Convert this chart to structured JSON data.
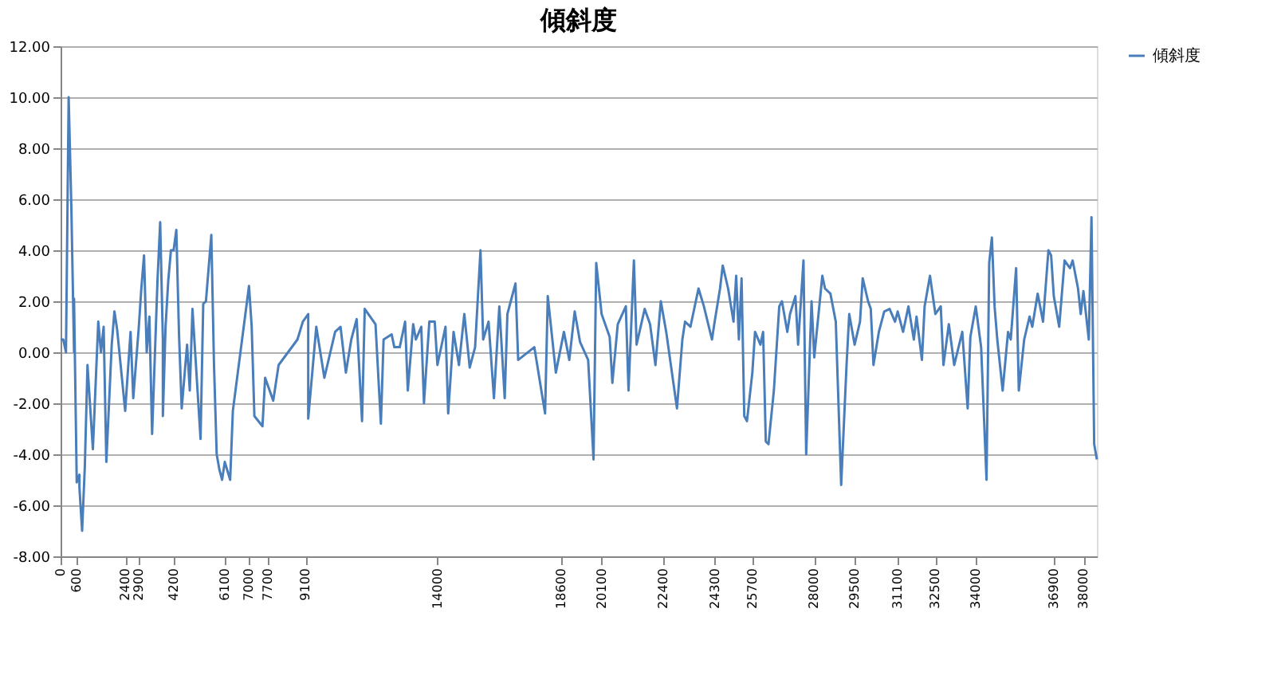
{
  "chart_data": {
    "type": "line",
    "title": "傾斜度",
    "xlim": [
      0,
      38500
    ],
    "xticks": [
      0,
      600,
      2400,
      2900,
      4200,
      6100,
      7000,
      7700,
      9100,
      14000,
      18600,
      20100,
      22400,
      24300,
      25700,
      28000,
      29500,
      31100,
      32500,
      34000,
      36900,
      38000
    ],
    "ylim": [
      -8,
      12
    ],
    "yticks": [
      {
        "value": -8,
        "label": "-8.00"
      },
      {
        "value": -6,
        "label": "-6.00"
      },
      {
        "value": -4,
        "label": "-4.00"
      },
      {
        "value": -2,
        "label": "-2.00"
      },
      {
        "value": 0,
        "label": "0.00"
      },
      {
        "value": 2,
        "label": "2.00"
      },
      {
        "value": 4,
        "label": "4.00"
      },
      {
        "value": 6,
        "label": "6.00"
      },
      {
        "value": 8,
        "label": "8.00"
      },
      {
        "value": 10,
        "label": "10.00"
      },
      {
        "value": 12,
        "label": "12.00"
      }
    ],
    "grid": "y",
    "legend": "right",
    "marker": "none",
    "line_style": "solid",
    "x": [
      0,
      100,
      200,
      300,
      400,
      400,
      500,
      500,
      600,
      700,
      700,
      800,
      900,
      1000,
      1200,
      1400,
      1500,
      1600,
      1700,
      1900,
      2000,
      2100,
      2400,
      2600,
      2700,
      2900,
      3000,
      3100,
      3200,
      3300,
      3400,
      3600,
      3700,
      3800,
      3800,
      3900,
      4000,
      4100,
      4200,
      4300,
      4400,
      4500,
      4700,
      4800,
      4900,
      5200,
      5300,
      5400,
      5600,
      5700,
      5800,
      5900,
      6000,
      6100,
      6300,
      6400,
      7000,
      7100,
      7200,
      7500,
      7600,
      7900,
      8100,
      8800,
      9000,
      9200,
      9200,
      9500,
      9800,
      10200,
      10400,
      10600,
      10800,
      11000,
      11200,
      11300,
      11700,
      11900,
      12000,
      12300,
      12400,
      12600,
      12800,
      12900,
      13100,
      13200,
      13400,
      13500,
      13700,
      13900,
      14000,
      14300,
      14400,
      14600,
      14800,
      15000,
      15200,
      15400,
      15600,
      15700,
      15900,
      16100,
      16300,
      16500,
      16600,
      16900,
      17000,
      17600,
      18000,
      18100,
      18400,
      18700,
      18900,
      19100,
      19300,
      19600,
      19800,
      19900,
      20100,
      20400,
      20500,
      20700,
      21000,
      21100,
      21300,
      21400,
      21700,
      21900,
      22100,
      22300,
      22500,
      22900,
      23100,
      23200,
      23400,
      23700,
      23900,
      24200,
      24300,
      24500,
      24600,
      24800,
      25000,
      25100,
      25200,
      25300,
      25400,
      25500,
      25700,
      25800,
      26000,
      26100,
      26200,
      26300,
      26500,
      26700,
      26800,
      27000,
      27100,
      27300,
      27400,
      27600,
      27700,
      27900,
      28000,
      28300,
      28400,
      28600,
      28800,
      29000,
      29200,
      29300,
      29500,
      29700,
      29800,
      30000,
      30100,
      30200,
      30400,
      30600,
      30800,
      31000,
      31100,
      31300,
      31500,
      31700,
      31800,
      32000,
      32100,
      32300,
      32500,
      32700,
      32800,
      33000,
      33200,
      33500,
      33700,
      33800,
      34000,
      34200,
      34400,
      34500,
      34600,
      34700,
      34800,
      35000,
      35200,
      35300,
      35500,
      35600,
      35800,
      36000,
      36100,
      36300,
      36500,
      36700,
      36800,
      36900,
      37100,
      37300,
      37500,
      37600,
      37800,
      37900,
      38000,
      38200,
      38300,
      38400,
      38500
    ],
    "series": [
      {
        "name": "傾斜度",
        "color": "#4a7ebb",
        "values": [
          0.5,
          0.5,
          0,
          10,
          5.7,
          5.7,
          0,
          2.1,
          -5.1,
          -4.8,
          -5.3,
          -7.0,
          -4.5,
          -0.5,
          -3.8,
          1.2,
          0,
          1.0,
          -4.3,
          0.3,
          1.6,
          0.9,
          -2.3,
          0.8,
          -1.8,
          0.9,
          2.5,
          3.8,
          0,
          1.4,
          -3.2,
          2.8,
          5.1,
          0.5,
          -2.5,
          1.0,
          2.8,
          4.0,
          4.0,
          4.8,
          0.7,
          -2.2,
          0.3,
          -1.5,
          1.7,
          -3.4,
          1.9,
          2.0,
          4.6,
          -0.5,
          -4.0,
          -4.6,
          -5.0,
          -4.3,
          -5.0,
          -2.3,
          2.6,
          1.0,
          -2.5,
          -2.9,
          -1.0,
          -1.9,
          -0.5,
          0.5,
          1.2,
          1.5,
          -2.6,
          1.0,
          -1.0,
          0.8,
          1.0,
          -0.8,
          0.5,
          1.3,
          -2.7,
          1.7,
          1.1,
          -2.8,
          0.5,
          0.7,
          0.2,
          0.2,
          1.2,
          -1.5,
          1.1,
          0.5,
          1.0,
          -2.0,
          1.2,
          1.2,
          -0.5,
          1.0,
          -2.4,
          0.8,
          -0.5,
          1.5,
          -0.6,
          0.2,
          4.0,
          0.5,
          1.2,
          -1.8,
          1.8,
          -1.8,
          1.5,
          2.7,
          -0.3,
          0.2,
          -2.4,
          2.2,
          -0.8,
          0.8,
          -0.3,
          1.6,
          0.4,
          -0.3,
          -4.2,
          3.5,
          1.5,
          0.6,
          -1.2,
          1.1,
          1.8,
          -1.5,
          3.6,
          0.3,
          1.7,
          1.1,
          -0.5,
          2.0,
          0.8,
          -2.2,
          0.5,
          1.2,
          1.0,
          2.5,
          1.8,
          0.5,
          1.2,
          2.5,
          3.4,
          2.5,
          1.2,
          3.0,
          0.5,
          2.9,
          -2.5,
          -2.7,
          -0.8,
          0.8,
          0.3,
          0.8,
          -3.5,
          -3.6,
          -1.5,
          1.8,
          2.0,
          0.8,
          1.5,
          2.2,
          0.3,
          3.6,
          -4.0,
          2.0,
          -0.2,
          3.0,
          2.5,
          2.3,
          1.2,
          -5.2,
          -0.5,
          1.5,
          0.3,
          1.2,
          2.9,
          2.0,
          1.7,
          -0.5,
          0.8,
          1.6,
          1.7,
          1.2,
          1.6,
          0.8,
          1.8,
          0.5,
          1.4,
          -0.3,
          1.8,
          3.0,
          1.5,
          1.8,
          -0.5,
          1.1,
          -0.5,
          0.8,
          -2.2,
          0.6,
          1.8,
          0.2,
          -5.0,
          3.5,
          4.5,
          1.8,
          0.5,
          -1.5,
          0.8,
          0.5,
          3.3,
          -1.5,
          0.5,
          1.4,
          1.0,
          2.3,
          1.2,
          4.0,
          3.8,
          2.2,
          1.0,
          3.6,
          3.3,
          3.6,
          2.5,
          1.5,
          2.4,
          0.5,
          5.3,
          -3.6,
          -4.2
        ]
      }
    ]
  }
}
